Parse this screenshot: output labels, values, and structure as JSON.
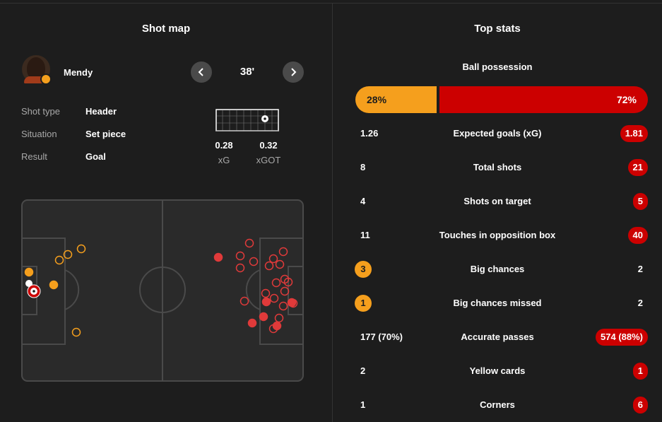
{
  "shot_map": {
    "title": "Shot map",
    "player": {
      "name": "Mendy"
    },
    "minute": "38'",
    "details": [
      {
        "label": "Shot type",
        "value": "Header"
      },
      {
        "label": "Situation",
        "value": "Set piece"
      },
      {
        "label": "Result",
        "value": "Goal"
      }
    ],
    "xg": {
      "value": "0.28",
      "label": "xG"
    },
    "xgot": {
      "value": "0.32",
      "label": "xGOT"
    },
    "colors": {
      "home": "#f59f1d",
      "away": "#e03a3a"
    }
  },
  "top_stats": {
    "title": "Top stats",
    "possession": {
      "label": "Ball possession",
      "home": "28%",
      "away": "72%",
      "home_fraction": 0.28
    },
    "rows": [
      {
        "name": "Expected goals (xG)",
        "home": "1.26",
        "away": "1.81",
        "highlight": "away"
      },
      {
        "name": "Total shots",
        "home": "8",
        "away": "21",
        "highlight": "away"
      },
      {
        "name": "Shots on target",
        "home": "4",
        "away": "5",
        "highlight": "away"
      },
      {
        "name": "Touches in opposition box",
        "home": "11",
        "away": "40",
        "highlight": "away"
      },
      {
        "name": "Big chances",
        "home": "3",
        "away": "2",
        "highlight": "home"
      },
      {
        "name": "Big chances missed",
        "home": "1",
        "away": "2",
        "highlight": "home"
      },
      {
        "name": "Accurate passes",
        "home": "177 (70%)",
        "away": "574 (88%)",
        "highlight": "away"
      },
      {
        "name": "Yellow cards",
        "home": "2",
        "away": "1",
        "highlight": "away"
      },
      {
        "name": "Corners",
        "home": "1",
        "away": "6",
        "highlight": "away"
      }
    ],
    "colors": {
      "home": "#f59f1d",
      "away": "#cc0000"
    }
  }
}
